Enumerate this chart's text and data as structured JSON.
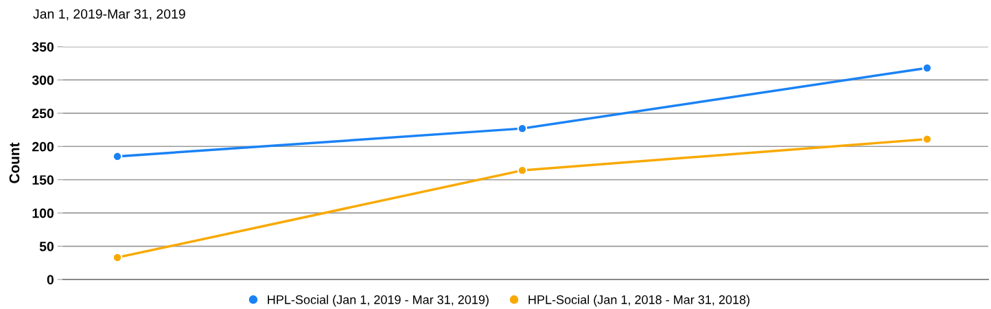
{
  "chart_data": {
    "type": "line",
    "title": "Jan 1, 2019-Mar 31, 2019",
    "ylabel": "Count",
    "categories": [
      null,
      null,
      null
    ],
    "series": [
      {
        "name": "HPL-Social (Jan 1, 2019 - Mar 31, 2019)",
        "color": "#1a82f5",
        "values": [
          185,
          227,
          318
        ]
      },
      {
        "name": "HPL-Social (Jan 1, 2018 - Mar 31, 2018)",
        "color": "#f8a900",
        "values": [
          33,
          164,
          211
        ]
      }
    ],
    "ylim": [
      0,
      350
    ],
    "yticks": [
      0,
      50,
      100,
      150,
      200,
      250,
      300,
      350
    ],
    "grid": "y",
    "legend": "bottom",
    "marker": "circle",
    "line_style": "solid"
  }
}
